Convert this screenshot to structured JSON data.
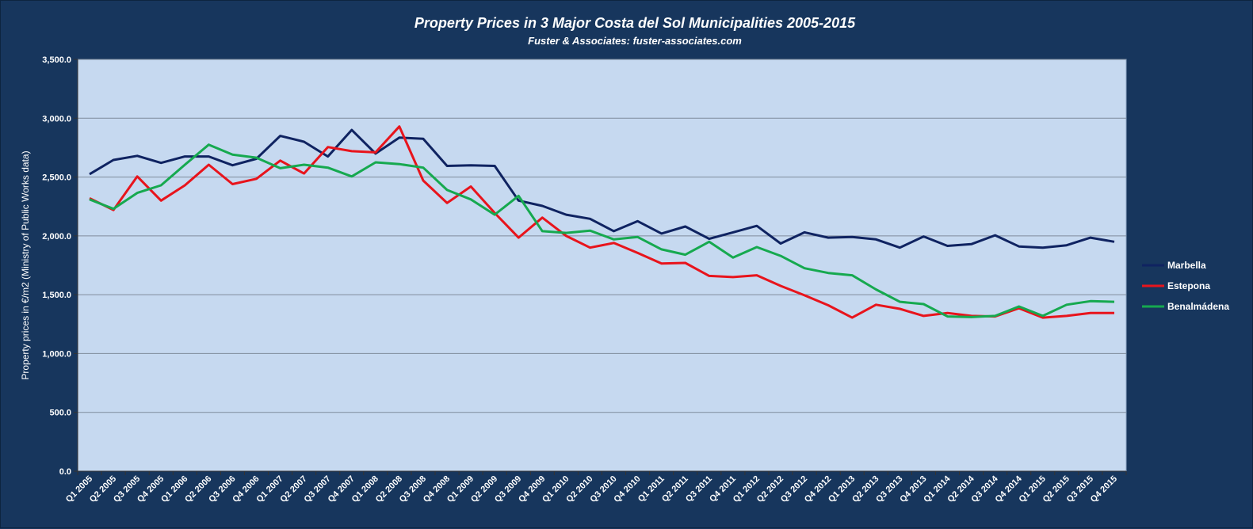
{
  "chart_data": {
    "type": "line",
    "title": "Property Prices in 3 Major Costa del Sol Municipalities 2005-2015",
    "subtitle": "Fuster & Associates: fuster-associates.com",
    "xlabel": "",
    "ylabel": "Property prices in €/m2 (Ministry of Public Works data)",
    "ylim": [
      0,
      3500
    ],
    "ytick_labels": [
      "0.0",
      "500.0",
      "1,000.0",
      "1,500.0",
      "2,000.0",
      "2,500.0",
      "3,000.0",
      "3,500.0"
    ],
    "ytick_values": [
      0,
      500,
      1000,
      1500,
      2000,
      2500,
      3000,
      3500
    ],
    "grid": true,
    "legend_position": "right",
    "categories": [
      "Q1 2005",
      "Q2 2005",
      "Q3 2005",
      "Q4 2005",
      "Q1 2006",
      "Q2 2006",
      "Q3 2006",
      "Q4 2006",
      "Q1 2007",
      "Q2 2007",
      "Q3 2007",
      "Q4 2007",
      "Q1 2008",
      "Q2 2008",
      "Q3 2008",
      "Q4 2008",
      "Q1 2009",
      "Q2 2009",
      "Q3 2009",
      "Q4 2009",
      "Q1 2010",
      "Q2 2010",
      "Q3 2010",
      "Q4 2010",
      "Q1 2011",
      "Q2 2011",
      "Q3 2011",
      "Q4 2011",
      "Q1 2012",
      "Q2 2012",
      "Q3 2012",
      "Q4 2012",
      "Q1 2013",
      "Q2 2013",
      "Q3 2013",
      "Q4 2013",
      "Q1 2014",
      "Q2 2014",
      "Q3 2014",
      "Q4 2014",
      "Q1 2015",
      "Q2 2015",
      "Q3 2015",
      "Q4 2015"
    ],
    "series": [
      {
        "name": "Marbella",
        "color": "#0f2361",
        "values": [
          2525,
          2645,
          2680,
          2620,
          2675,
          2675,
          2600,
          2655,
          2850,
          2800,
          2675,
          2900,
          2700,
          2835,
          2825,
          2595,
          2600,
          2595,
          2300,
          2255,
          2180,
          2145,
          2040,
          2125,
          2020,
          2080,
          1975,
          2030,
          2085,
          1935,
          2030,
          1985,
          1990,
          1970,
          1900,
          1995,
          1915,
          1930,
          2005,
          1910,
          1900,
          1920,
          1985,
          1950
        ]
      },
      {
        "name": "Estepona",
        "color": "#e8141c",
        "values": [
          2320,
          2220,
          2505,
          2300,
          2430,
          2605,
          2440,
          2485,
          2640,
          2530,
          2755,
          2720,
          2710,
          2930,
          2470,
          2280,
          2420,
          2195,
          1985,
          2155,
          2000,
          1900,
          1940,
          1855,
          1765,
          1770,
          1660,
          1650,
          1665,
          1575,
          1495,
          1410,
          1305,
          1415,
          1380,
          1320,
          1345,
          1320,
          1315,
          1385,
          1305,
          1320,
          1345,
          1345
        ]
      },
      {
        "name": "Benalmádena",
        "color": "#16a94f",
        "values": [
          2310,
          2230,
          2365,
          2430,
          2605,
          2775,
          2690,
          2665,
          2575,
          2605,
          2580,
          2505,
          2625,
          2610,
          2580,
          2390,
          2310,
          2180,
          2340,
          2040,
          2025,
          2045,
          1970,
          1990,
          1885,
          1840,
          1950,
          1815,
          1905,
          1830,
          1725,
          1685,
          1665,
          1545,
          1440,
          1420,
          1315,
          1310,
          1320,
          1400,
          1320,
          1415,
          1445,
          1440
        ]
      }
    ]
  }
}
